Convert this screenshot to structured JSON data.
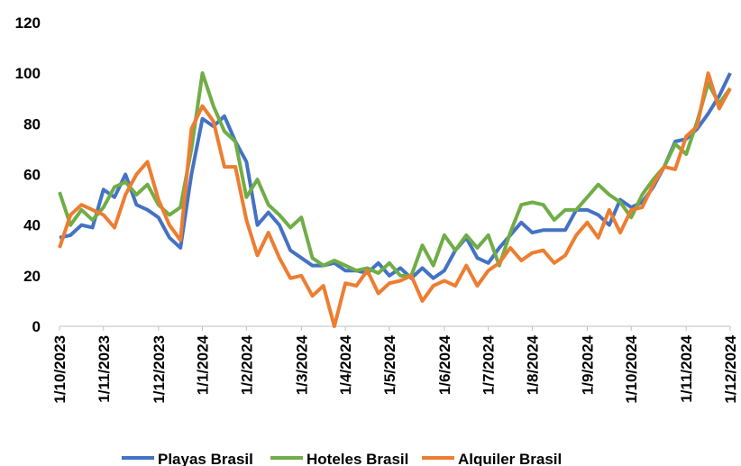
{
  "chart_data": {
    "type": "line",
    "categories": [
      "1/10/2023",
      null,
      null,
      null,
      "1/11/2023",
      null,
      null,
      null,
      null,
      "1/12/2023",
      null,
      null,
      null,
      "1/1/2024",
      null,
      null,
      null,
      "1/2/2024",
      null,
      null,
      null,
      null,
      "1/3/2024",
      null,
      null,
      null,
      "1/4/2024",
      null,
      null,
      null,
      "1/5/2024",
      null,
      null,
      null,
      null,
      "1/6/2024",
      null,
      null,
      null,
      "1/7/2024",
      null,
      null,
      null,
      "1/8/2024",
      null,
      null,
      null,
      null,
      "1/9/2024",
      null,
      null,
      null,
      "1/10/2024",
      null,
      null,
      null,
      null,
      "1/11/2024",
      null,
      null,
      null,
      "1/12/2024"
    ],
    "series": [
      {
        "name": "Playas Brasil",
        "color": "#4472c4",
        "values": [
          35,
          36,
          40,
          39,
          54,
          51,
          60,
          48,
          46,
          43,
          35,
          31,
          60,
          82,
          79,
          83,
          73,
          65,
          40,
          45,
          40,
          30,
          27,
          24,
          24,
          25,
          22,
          22,
          21,
          25,
          20,
          23,
          19,
          23,
          19,
          22,
          30,
          35,
          27,
          25,
          31,
          36,
          41,
          37,
          38,
          38,
          38,
          46,
          46,
          44,
          40,
          50,
          47,
          49,
          55,
          63,
          73,
          74,
          78,
          84,
          91,
          100
        ]
      },
      {
        "name": "Hoteles Brasil",
        "color": "#70ad47",
        "values": [
          53,
          40,
          46,
          42,
          47,
          55,
          57,
          52,
          56,
          48,
          44,
          47,
          70,
          100,
          87,
          77,
          73,
          51,
          58,
          48,
          44,
          39,
          43,
          27,
          24,
          26,
          24,
          22,
          23,
          21,
          25,
          20,
          20,
          32,
          24,
          36,
          30,
          36,
          31,
          36,
          24,
          37,
          48,
          49,
          48,
          42,
          46,
          46,
          51,
          56,
          52,
          49,
          43,
          52,
          58,
          63,
          72,
          68,
          81,
          96,
          88,
          94
        ]
      },
      {
        "name": "Alquiler Brasil",
        "color": "#ed7d31",
        "values": [
          31,
          44,
          48,
          46,
          44,
          39,
          52,
          60,
          65,
          50,
          40,
          34,
          78,
          87,
          81,
          63,
          63,
          42,
          28,
          37,
          27,
          19,
          20,
          12,
          16,
          0,
          17,
          16,
          22,
          13,
          17,
          18,
          20,
          10,
          16,
          18,
          16,
          24,
          16,
          22,
          25,
          31,
          26,
          29,
          30,
          25,
          28,
          36,
          41,
          35,
          46,
          37,
          46,
          47,
          56,
          63,
          62,
          75,
          79,
          100,
          86,
          94
        ]
      }
    ],
    "ylim": [
      0,
      120
    ],
    "yticks": [
      0,
      20,
      40,
      60,
      80,
      100,
      120
    ],
    "grid": false,
    "legend": "bottom"
  }
}
